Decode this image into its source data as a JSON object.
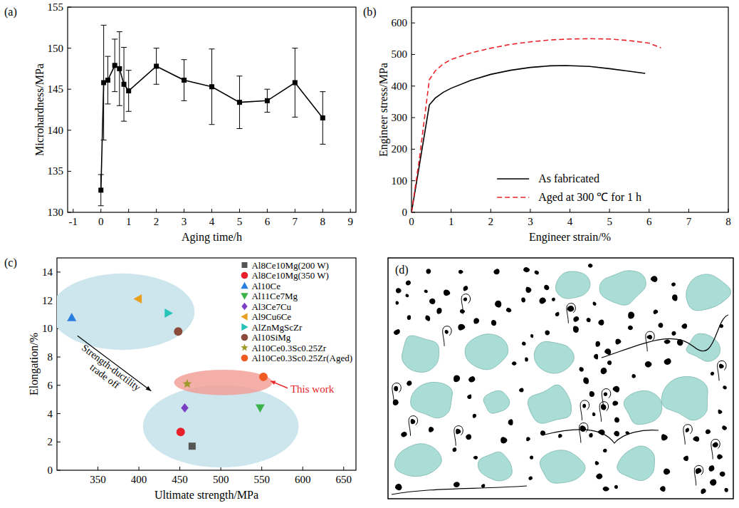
{
  "chart_data": [
    {
      "type": "line",
      "title": "(a)",
      "x_label": "Aging time/h",
      "y_label": "Microhardness/MPa",
      "x": [
        0,
        0.1,
        0.25,
        0.5,
        0.67,
        0.83,
        1,
        2,
        3,
        4,
        5,
        6,
        7,
        8
      ],
      "values": [
        132.7,
        145.8,
        146.1,
        147.9,
        147.5,
        145.6,
        144.8,
        147.8,
        146.1,
        145.3,
        143.4,
        143.6,
        145.8,
        141.5
      ],
      "errors": [
        1.9,
        7.0,
        2.9,
        3.2,
        4.5,
        4.5,
        2.5,
        2.2,
        2.5,
        4.6,
        3.2,
        1.4,
        4.2,
        3.2
      ],
      "color": "#000000",
      "marker": "square",
      "xlim": [
        -1.2,
        9.2
      ],
      "xticks": [
        -1,
        0,
        1,
        2,
        3,
        4,
        5,
        6,
        7,
        8,
        9
      ],
      "ylim": [
        130,
        155
      ],
      "yticks": [
        130,
        135,
        140,
        145,
        150,
        155
      ]
    },
    {
      "type": "line",
      "title": "(b)",
      "x_label": "Engineer strain/%",
      "y_label": "Engineer stress/MPa",
      "legend": "lower right",
      "xlim": [
        0,
        8
      ],
      "xticks": [
        0,
        1,
        2,
        3,
        4,
        5,
        6,
        7,
        8
      ],
      "ylim": [
        0,
        650
      ],
      "yticks": [
        0,
        100,
        200,
        300,
        400,
        500,
        600
      ],
      "series": [
        {
          "name": "As fabricated",
          "color": "#000000",
          "line_style": "solid",
          "x": [
            0,
            0.2,
            0.45,
            0.6,
            0.8,
            1,
            1.5,
            2,
            2.5,
            3,
            3.5,
            3.9,
            4.5,
            5,
            5.5,
            5.9
          ],
          "values": [
            0,
            150,
            340,
            362,
            380,
            393,
            418,
            437,
            450,
            459,
            464,
            465,
            462,
            455,
            447,
            440
          ]
        },
        {
          "name": "Aged at 300 ℃ for 1 h",
          "color": "#e8242a",
          "line_style": "dashed",
          "x": [
            0,
            0.2,
            0.45,
            0.6,
            0.8,
            1,
            1.5,
            2,
            2.5,
            3,
            3.5,
            4,
            4.5,
            5,
            5.5,
            6,
            6.3
          ],
          "values": [
            0,
            170,
            420,
            448,
            470,
            484,
            505,
            520,
            532,
            540,
            546,
            549,
            550,
            549,
            544,
            536,
            521
          ]
        }
      ]
    },
    {
      "type": "scatter",
      "title": "(c)",
      "x_label": "Ultimate strength/MPa",
      "y_label": "Elongation/%",
      "legend": "upper right",
      "annotations": [
        "Strength-ductility trade off",
        "This work"
      ],
      "xlim": [
        300,
        665
      ],
      "xticks": [
        350,
        400,
        450,
        500,
        550,
        600,
        650
      ],
      "ylim": [
        0,
        15
      ],
      "yticks": [
        0,
        2,
        4,
        6,
        8,
        10,
        12,
        14
      ],
      "series": [
        {
          "name": "Al8Ce10Mg(200 W)",
          "color": "#555555",
          "marker": "square",
          "x": [
            465
          ],
          "values": [
            1.7
          ]
        },
        {
          "name": "Al8Ce10Mg(350 W)",
          "color": "#e8202a",
          "marker": "circle",
          "x": [
            451
          ],
          "values": [
            2.7
          ]
        },
        {
          "name": "Al10Ce",
          "color": "#2a7ee0",
          "marker": "triangle-up",
          "x": [
            318
          ],
          "values": [
            10.8
          ]
        },
        {
          "name": "Al11Ce7Mg",
          "color": "#3cb34a",
          "marker": "triangle-down",
          "x": [
            548
          ],
          "values": [
            4.4
          ]
        },
        {
          "name": "Al3Ce7Cu",
          "color": "#7b3fc4",
          "marker": "diamond",
          "x": [
            456
          ],
          "values": [
            4.4
          ]
        },
        {
          "name": "Al9Cu6Ce",
          "color": "#e8a020",
          "marker": "triangle-left",
          "x": [
            399
          ],
          "values": [
            12.1
          ]
        },
        {
          "name": "AlZnMgScZr",
          "color": "#27c3b8",
          "marker": "triangle-right",
          "x": [
            436
          ],
          "values": [
            11.1
          ]
        },
        {
          "name": "Al10SiMg",
          "color": "#8b4a3c",
          "marker": "circle",
          "x": [
            448
          ],
          "values": [
            9.8
          ]
        },
        {
          "name": "Al10Ce0.3Sc0.25Zr",
          "color": "#a09a2a",
          "marker": "star",
          "x": [
            459
          ],
          "values": [
            6.1
          ]
        },
        {
          "name": "Al10Ce0.3Sc0.25Zr(Aged)",
          "color": "#f05a23",
          "marker": "circle",
          "x": [
            552
          ],
          "values": [
            6.6
          ]
        }
      ]
    },
    {
      "type": "diagram",
      "title": "(d)"
    }
  ]
}
